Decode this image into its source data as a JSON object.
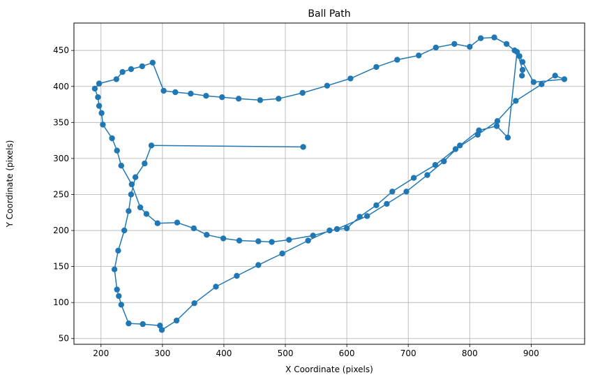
{
  "chart_data": {
    "type": "line",
    "title": "Ball Path",
    "xlabel": "X Coordinate (pixels)",
    "ylabel": "Y Coordinate (pixels)",
    "xlim": [
      156,
      987
    ],
    "ylim": [
      42,
      488
    ],
    "xticks": [
      200,
      300,
      400,
      500,
      600,
      700,
      800,
      900
    ],
    "yticks": [
      50,
      100,
      150,
      200,
      250,
      300,
      350,
      400,
      450
    ],
    "grid": true,
    "color": "#1f77b4",
    "marker": "circle",
    "series": [
      {
        "x": [
          529,
          282,
          271,
          256,
          249,
          245,
          238,
          228,
          222,
          226,
          229,
          233,
          245,
          268,
          296,
          299,
          323,
          352,
          387,
          421,
          456,
          495,
          537,
          572,
          600,
          621,
          648,
          674,
          709,
          744,
          777,
          813,
          845,
          875,
          917,
          939,
          954,
          904,
          886,
          881,
          873,
          860,
          840,
          818,
          800,
          775,
          745,
          717,
          682,
          648,
          606,
          568,
          528,
          489,
          459,
          424,
          397,
          371,
          346,
          321,
          302,
          284,
          267,
          249,
          235,
          225,
          197,
          190,
          195,
          197,
          201,
          203,
          218,
          226,
          233,
          250,
          264,
          274,
          292,
          324,
          351,
          372,
          399,
          425,
          456,
          478,
          506,
          545,
          584,
          633,
          665,
          697,
          731,
          758,
          784,
          815,
          844,
          862,
          877,
          886,
          885
        ],
        "y": [
          316,
          318,
          293,
          274,
          250,
          227,
          200,
          172,
          146,
          118,
          109,
          97,
          71,
          70,
          68,
          62,
          75,
          99,
          122,
          137,
          152,
          168,
          186,
          200,
          203,
          219,
          235,
          254,
          273,
          291,
          313,
          333,
          352,
          380,
          403,
          415,
          410,
          406,
          434,
          442,
          450,
          459,
          468,
          467,
          455,
          459,
          454,
          443,
          437,
          427,
          411,
          401,
          391,
          383,
          381,
          383,
          385,
          387,
          390,
          392,
          394,
          433,
          428,
          424,
          420,
          410,
          404,
          397,
          385,
          373,
          363,
          347,
          328,
          311,
          290,
          264,
          232,
          223,
          210,
          211,
          203,
          194,
          189,
          186,
          185,
          184,
          187,
          193,
          202,
          220,
          237,
          254,
          277,
          296,
          318,
          339,
          345,
          329,
          448,
          423,
          415
        ]
      }
    ]
  }
}
